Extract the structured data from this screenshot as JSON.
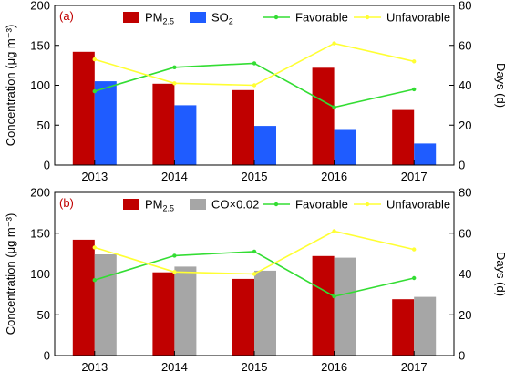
{
  "chart_data": [
    {
      "panel_label": "(a)",
      "type": "bar",
      "categories": [
        "2013",
        "2014",
        "2015",
        "2016",
        "2017"
      ],
      "series": [
        {
          "name_main": "PM",
          "name_sub": "2.5",
          "axis": "left",
          "type": "bar",
          "color": "#c00000",
          "values": [
            142,
            102,
            94,
            122,
            69
          ]
        },
        {
          "name_main": "SO",
          "name_sub": "2",
          "axis": "left",
          "type": "bar",
          "color": "#1f5cff",
          "values": [
            105,
            75,
            49,
            44,
            27
          ]
        },
        {
          "name": "Favorable",
          "axis": "right",
          "type": "line",
          "color": "#33dd33",
          "values": [
            37,
            49,
            51,
            29,
            38
          ]
        },
        {
          "name": "Unfavorable",
          "axis": "right",
          "type": "line",
          "color": "#ffff33",
          "values": [
            53,
            41,
            40,
            61,
            52
          ]
        }
      ],
      "ylabel": "Concentration (μg m⁻³)",
      "y2label": "Days (d)",
      "ylim": [
        0,
        200
      ],
      "yticks": [
        0,
        50,
        100,
        150,
        200
      ],
      "y2lim": [
        0,
        80
      ],
      "y2ticks": [
        0,
        20,
        40,
        60,
        80
      ],
      "legend": "top"
    },
    {
      "panel_label": "(b)",
      "type": "bar",
      "categories": [
        "2013",
        "2014",
        "2015",
        "2016",
        "2017"
      ],
      "series": [
        {
          "name_main": "PM",
          "name_sub": "2.5",
          "axis": "left",
          "type": "bar",
          "color": "#c00000",
          "values": [
            142,
            102,
            94,
            122,
            69
          ]
        },
        {
          "name": "CO×0.02",
          "axis": "left",
          "type": "bar",
          "color": "#a6a6a6",
          "values": [
            124,
            109,
            104,
            120,
            72
          ]
        },
        {
          "name": "Favorable",
          "axis": "right",
          "type": "line",
          "color": "#33dd33",
          "values": [
            37,
            49,
            51,
            29,
            38
          ]
        },
        {
          "name": "Unfavorable",
          "axis": "right",
          "type": "line",
          "color": "#ffff33",
          "values": [
            53,
            41,
            40,
            61,
            52
          ]
        }
      ],
      "ylabel": "Concentration (μg m⁻³)",
      "y2label": "Days (d)",
      "ylim": [
        0,
        200
      ],
      "yticks": [
        0,
        50,
        100,
        150,
        200
      ],
      "y2lim": [
        0,
        80
      ],
      "y2ticks": [
        0,
        20,
        40,
        60,
        80
      ],
      "legend": "top"
    }
  ]
}
